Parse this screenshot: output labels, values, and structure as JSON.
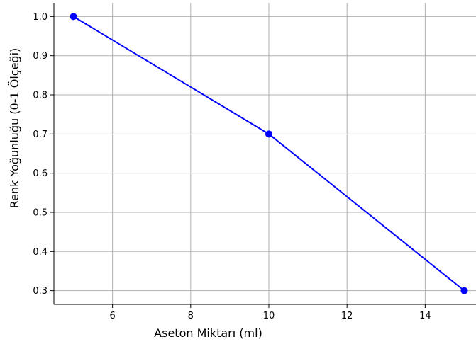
{
  "chart_data": {
    "type": "line",
    "title": "",
    "xlabel": "Aseton Miktarı (ml)",
    "ylabel": "Renk Yoğunluğu (0-1 Ölçeği)",
    "x": [
      5,
      10,
      15
    ],
    "series": [
      {
        "values": [
          1.0,
          0.7,
          0.3
        ],
        "color": "#0000ff",
        "marker": "circle"
      }
    ],
    "xlim": [
      4.5,
      15.3
    ],
    "ylim": [
      0.265,
      1.035
    ],
    "xticks": [
      6,
      8,
      10,
      12,
      14
    ],
    "xtick_labels": [
      "6",
      "8",
      "10",
      "12",
      "14"
    ],
    "yticks": [
      0.3,
      0.4,
      0.5,
      0.6,
      0.7,
      0.8,
      0.9,
      1.0
    ],
    "ytick_labels": [
      "0.3",
      "0.4",
      "0.5",
      "0.6",
      "0.7",
      "0.8",
      "0.9",
      "1.0"
    ],
    "grid": true,
    "legend": "none"
  }
}
